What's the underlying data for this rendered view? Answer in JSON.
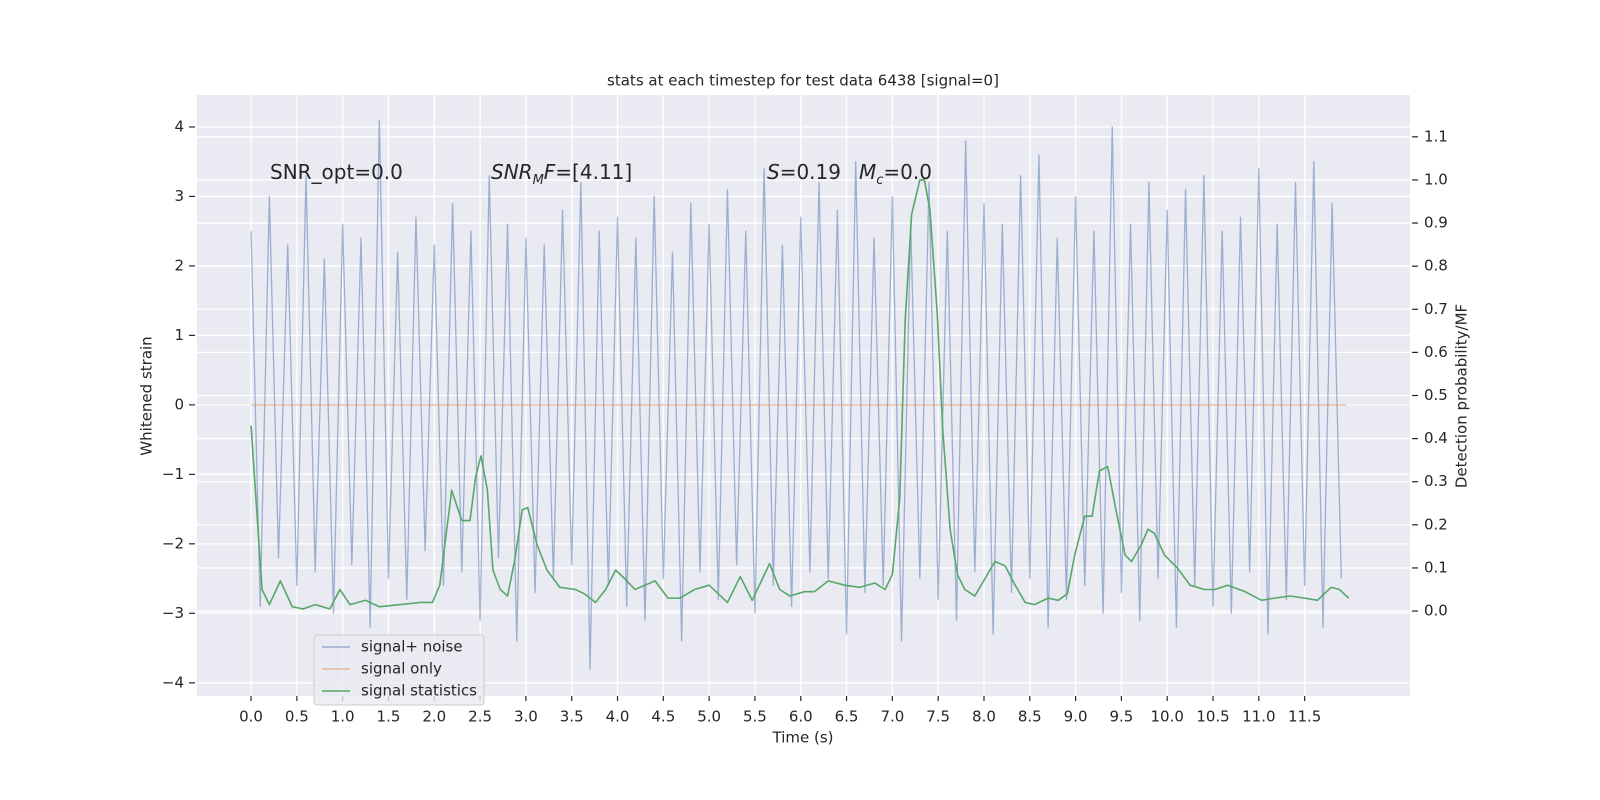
{
  "chart_data": {
    "type": "line",
    "title": "stats at each timestep for test data 6438 [signal=0]",
    "xlabel": "Time (s)",
    "ylabel": "Whitened strain",
    "y2label": "Detection probability/MF",
    "xlim": [
      -0.59,
      12.65
    ],
    "ylim": [
      -4.19,
      4.46
    ],
    "y2lim": [
      -0.197,
      1.197
    ],
    "xticks": [
      {
        "value": 0,
        "label": "0.0"
      },
      0.5,
      {
        "value": 1,
        "label": "1.0"
      },
      1.5,
      {
        "value": 2,
        "label": "2.0"
      },
      2.5,
      {
        "value": 3,
        "label": "3.0"
      },
      3.5,
      {
        "value": 4,
        "label": "4.0"
      },
      4.5,
      {
        "value": 5,
        "label": "5.0"
      },
      5.5,
      {
        "value": 6,
        "label": "6.0"
      },
      6.5,
      {
        "value": 7,
        "label": "7.0"
      },
      7.5,
      {
        "value": 8,
        "label": "8.0"
      },
      8.5,
      {
        "value": 9,
        "label": "9.0"
      },
      9.5,
      {
        "value": 10,
        "label": "10.0"
      },
      10.5,
      {
        "value": 11,
        "label": "11.0"
      },
      11.5
    ],
    "yticks": [
      {
        "value": -4,
        "label": "−4"
      },
      {
        "value": -3,
        "label": "−3"
      },
      {
        "value": -2,
        "label": "−2"
      },
      {
        "value": -1,
        "label": "−1"
      },
      0,
      1,
      2,
      3,
      4
    ],
    "y2ticks": [
      {
        "value": 0,
        "label": "0.0"
      },
      0.1,
      0.2,
      0.3,
      0.4,
      0.5,
      0.6,
      0.7,
      0.8,
      0.9,
      {
        "value": 1,
        "label": "1.0"
      },
      1.1
    ],
    "grid": true,
    "legend": "lower left",
    "annotations": [
      {
        "segments": [
          {
            "text": "SNR_opt=0.0"
          }
        ]
      },
      {
        "segments": [
          {
            "text": "SNR",
            "style": "italic"
          },
          {
            "text": "M",
            "style": "sub"
          },
          {
            "text": "F",
            "style": "italic"
          },
          {
            "text": "=[4.11]"
          }
        ]
      },
      {
        "segments": [
          {
            "text": "S",
            "style": "italic"
          },
          {
            "text": "=0.19"
          }
        ]
      },
      {
        "segments": [
          {
            "text": "M",
            "style": "italic"
          },
          {
            "text": "c",
            "style": "sub"
          },
          {
            "text": "=0.0"
          }
        ]
      }
    ],
    "series": [
      {
        "name": "signal+ noise",
        "color": "#4c72b0",
        "x": [
          0,
          0.1,
          0.2,
          0.3,
          0.4,
          0.5,
          0.6,
          0.7,
          0.8,
          0.9,
          1,
          1.1,
          1.2,
          1.3,
          1.4,
          1.5,
          1.6,
          1.7,
          1.8,
          1.9,
          2,
          2.1,
          2.2,
          2.3,
          2.4,
          2.5,
          2.6,
          2.7,
          2.8,
          2.9,
          3,
          3.1,
          3.2,
          3.3,
          3.4,
          3.5,
          3.6,
          3.7,
          3.8,
          3.9,
          4,
          4.1,
          4.2,
          4.3,
          4.4,
          4.5,
          4.6,
          4.7,
          4.8,
          4.9,
          5,
          5.1,
          5.2,
          5.3,
          5.4,
          5.5,
          5.6,
          5.7,
          5.8,
          5.9,
          6,
          6.1,
          6.2,
          6.3,
          6.4,
          6.5,
          6.6,
          6.7,
          6.8,
          6.9,
          7,
          7.1,
          7.2,
          7.3,
          7.4,
          7.5,
          7.6,
          7.7,
          7.8,
          7.9,
          8,
          8.1,
          8.2,
          8.3,
          8.4,
          8.5,
          8.6,
          8.7,
          8.8,
          8.9,
          9,
          9.1,
          9.2,
          9.3,
          9.4,
          9.5,
          9.6,
          9.7,
          9.8,
          9.9,
          10,
          10.1,
          10.2,
          10.3,
          10.4,
          10.5,
          10.6,
          10.7,
          10.8,
          10.9,
          11,
          11.1,
          11.2,
          11.3,
          11.4,
          11.5,
          11.6,
          11.7,
          11.8,
          11.9
        ],
        "values": [
          2.5,
          -2.9,
          3.0,
          -2.2,
          2.3,
          -2.6,
          3.3,
          -2.4,
          2.1,
          -3.0,
          2.6,
          -2.3,
          2.4,
          -3.2,
          4.1,
          -2.5,
          2.2,
          -2.8,
          2.7,
          -2.1,
          2.3,
          -2.6,
          2.9,
          -2.4,
          2.5,
          -3.1,
          3.3,
          -2.2,
          2.6,
          -3.4,
          2.4,
          -2.7,
          2.3,
          -2.5,
          2.8,
          -2.3,
          3.2,
          -3.8,
          2.5,
          -2.6,
          2.7,
          -2.9,
          2.4,
          -3.1,
          3.0,
          -2.5,
          2.2,
          -3.4,
          2.9,
          -2.4,
          2.6,
          -2.8,
          3.1,
          -2.3,
          2.5,
          -3.0,
          3.4,
          -2.6,
          2.3,
          -2.9,
          2.7,
          -2.4,
          3.2,
          -2.5,
          2.8,
          -3.3,
          3.5,
          -2.7,
          2.4,
          -2.6,
          3.0,
          -3.4,
          2.6,
          -2.5,
          3.2,
          -2.8,
          2.5,
          -3.1,
          3.8,
          -2.4,
          2.9,
          -3.3,
          2.6,
          -2.7,
          3.3,
          -2.5,
          3.6,
          -3.2,
          2.4,
          -2.8,
          3.0,
          -2.6,
          2.5,
          -3.0,
          4.0,
          -2.7,
          2.6,
          -3.1,
          3.2,
          -2.5,
          2.8,
          -3.2,
          3.1,
          -2.6,
          3.3,
          -2.9,
          2.5,
          -3.0,
          2.7,
          -2.4,
          3.4,
          -3.3,
          2.6,
          -2.8,
          3.2,
          -2.6,
          3.5,
          -3.2,
          2.9,
          -2.5
        ]
      },
      {
        "name": "signal only",
        "color": "#dd8452",
        "x": [
          0,
          11.95
        ],
        "values": [
          0,
          0
        ]
      },
      {
        "name": "signal statistics",
        "color": "#55a868",
        "axis": "y2",
        "x": [
          0,
          0.12,
          0.2,
          0.32,
          0.45,
          0.57,
          0.7,
          0.86,
          0.97,
          1.08,
          1.25,
          1.4,
          1.63,
          1.85,
          1.98,
          2.06,
          2.19,
          2.3,
          2.39,
          2.45,
          2.51,
          2.58,
          2.64,
          2.72,
          2.8,
          2.88,
          2.96,
          3.02,
          3.12,
          3.23,
          3.37,
          3.54,
          3.64,
          3.76,
          3.87,
          3.98,
          4.08,
          4.19,
          4.3,
          4.41,
          4.55,
          4.68,
          4.84,
          5.0,
          5.2,
          5.34,
          5.47,
          5.66,
          5.77,
          5.88,
          6.04,
          6.15,
          6.3,
          6.48,
          6.64,
          6.81,
          6.92,
          7.0,
          7.08,
          7.14,
          7.21,
          7.3,
          7.35,
          7.41,
          7.49,
          7.55,
          7.63,
          7.71,
          7.79,
          7.9,
          8.01,
          8.12,
          8.23,
          8.34,
          8.45,
          8.55,
          8.7,
          8.81,
          8.91,
          8.99,
          9.1,
          9.18,
          9.26,
          9.35,
          9.44,
          9.54,
          9.61,
          9.72,
          9.79,
          9.86,
          9.97,
          10.11,
          10.25,
          10.41,
          10.52,
          10.66,
          10.85,
          11.03,
          11.17,
          11.34,
          11.5,
          11.64,
          11.79,
          11.88,
          11.98
        ],
        "values": [
          0.43,
          0.05,
          0.015,
          0.07,
          0.01,
          0.005,
          0.015,
          0.005,
          0.05,
          0.015,
          0.025,
          0.01,
          0.015,
          0.02,
          0.02,
          0.06,
          0.28,
          0.21,
          0.21,
          0.31,
          0.36,
          0.28,
          0.095,
          0.05,
          0.035,
          0.12,
          0.235,
          0.24,
          0.155,
          0.095,
          0.055,
          0.05,
          0.04,
          0.02,
          0.05,
          0.095,
          0.075,
          0.05,
          0.06,
          0.07,
          0.03,
          0.03,
          0.05,
          0.06,
          0.02,
          0.08,
          0.025,
          0.11,
          0.05,
          0.035,
          0.045,
          0.045,
          0.07,
          0.06,
          0.055,
          0.065,
          0.05,
          0.085,
          0.26,
          0.675,
          0.92,
          1.0,
          1.0,
          0.93,
          0.69,
          0.42,
          0.19,
          0.085,
          0.05,
          0.035,
          0.075,
          0.115,
          0.105,
          0.06,
          0.02,
          0.015,
          0.03,
          0.025,
          0.04,
          0.13,
          0.22,
          0.22,
          0.325,
          0.335,
          0.235,
          0.13,
          0.115,
          0.155,
          0.19,
          0.18,
          0.13,
          0.1,
          0.06,
          0.05,
          0.05,
          0.06,
          0.045,
          0.025,
          0.03,
          0.035,
          0.03,
          0.025,
          0.055,
          0.05,
          0.03
        ]
      }
    ]
  }
}
